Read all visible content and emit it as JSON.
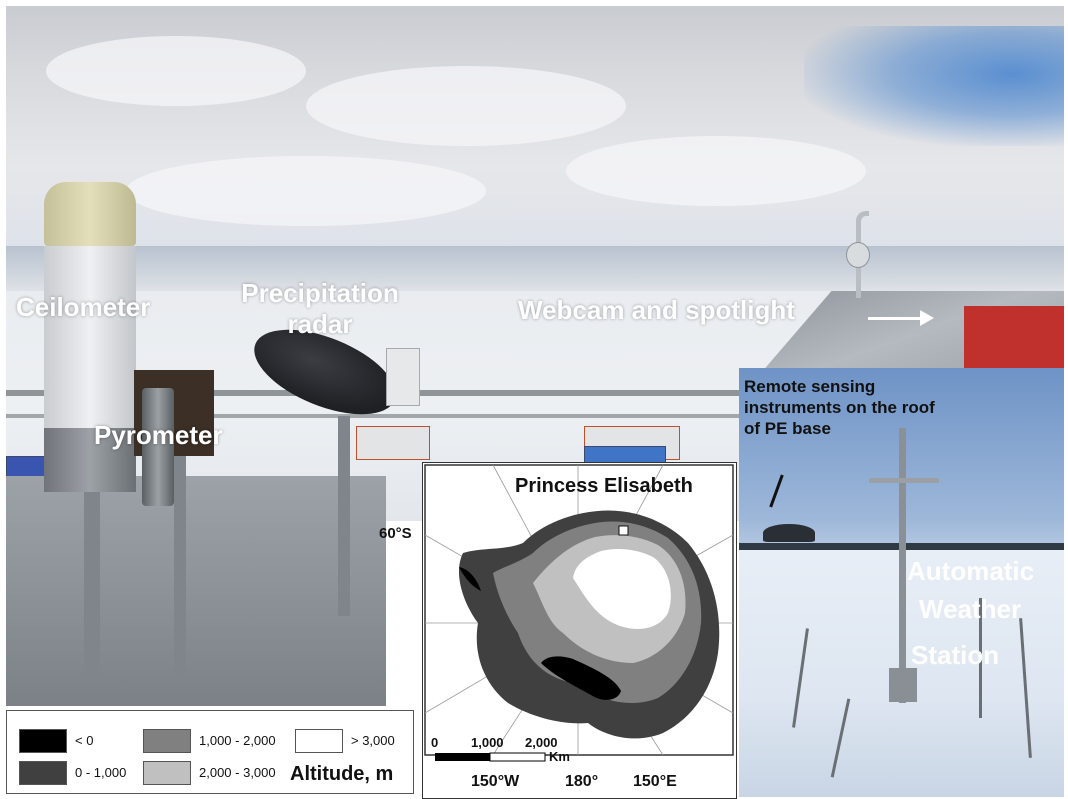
{
  "main_photo": {
    "labels": {
      "ceilometer": "Ceilometer",
      "precipitation_radar": "Precipitation radar",
      "pyrometer": "Pyrometer",
      "webcam": "Webcam and spotlight"
    }
  },
  "aws_photo": {
    "annotation": "Remote sensing instruments on the roof of PE base",
    "label_line1": "Automatic",
    "label_line2": "Weather",
    "label_line3": "Station"
  },
  "map": {
    "title": "Princess Elisabeth",
    "lat_label": "60°S",
    "lon_labels": [
      "150°W",
      "180°",
      "150°E"
    ],
    "scale": {
      "ticks": [
        "0",
        "1,000",
        "2,000"
      ],
      "unit": "Km"
    }
  },
  "legend": {
    "title": "Altitude, m",
    "items": [
      {
        "label": "< 0",
        "color": "#000000"
      },
      {
        "label": "0 - 1,000",
        "color": "#404040"
      },
      {
        "label": "1,000 - 2,000",
        "color": "#808080"
      },
      {
        "label": "2,000 - 3,000",
        "color": "#c0c0c0"
      },
      {
        "label": "> 3,000",
        "color": "#ffffff"
      }
    ]
  }
}
